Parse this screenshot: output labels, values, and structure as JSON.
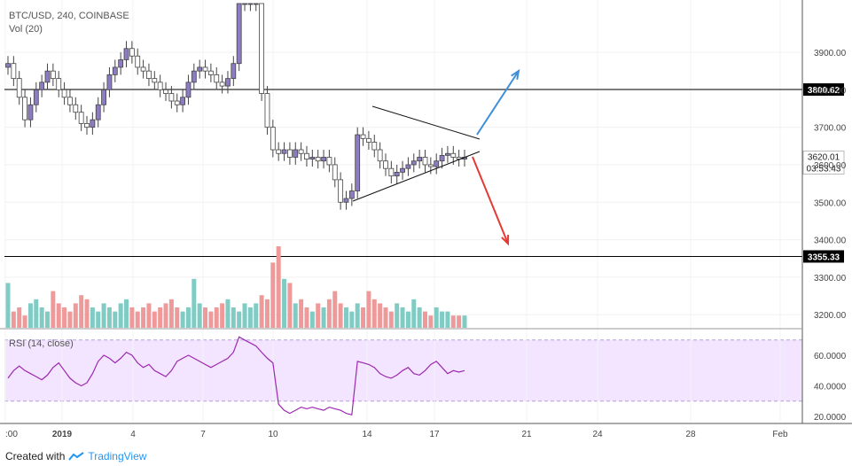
{
  "header": {
    "symbol_line": "BTC/USD, 240, COINBASE",
    "volume_label": "Vol (20)"
  },
  "rsi_panel": {
    "label": "RSI (14, close)"
  },
  "footer": {
    "created_with": "Created with",
    "brand": "TradingView"
  },
  "colors": {
    "up_candle": "#8e7cc3",
    "down_candle": "#ffffff",
    "wick": "#444444",
    "vol_up": "#80cbc4",
    "vol_down": "#ef9a9a",
    "rsi_line": "#9c27b0",
    "rsi_band": "#f3e5ff",
    "projection_up": "#3f8fd8",
    "projection_down": "#e53935"
  },
  "chart_data": {
    "type": "candlestick",
    "price_axis": {
      "ylim": [
        3165,
        4030
      ],
      "ticks": [
        3200,
        3300,
        3400,
        3500,
        3600,
        3700,
        3800,
        3900
      ]
    },
    "price_axis_labels": [
      "3200.00",
      "3300.00",
      "3400.00",
      "3500.00",
      "3600.00",
      "3700.00",
      "3800.00",
      "3900.00"
    ],
    "time_axis_labels": [
      ":00",
      "2019",
      "4",
      "7",
      "10",
      "14",
      "17",
      "21",
      "24",
      "28",
      "Feb"
    ],
    "level_lines": [
      {
        "value": 3800.62,
        "label": "3800.62"
      },
      {
        "value": 3355.33,
        "label": "3355.33"
      }
    ],
    "last_price": {
      "value": 3620.01,
      "label": "3620.01",
      "countdown": "03:53:43"
    },
    "candles_close": [
      3870,
      3830,
      3780,
      3720,
      3760,
      3800,
      3820,
      3850,
      3830,
      3800,
      3780,
      3760,
      3740,
      3710,
      3700,
      3720,
      3760,
      3800,
      3840,
      3860,
      3880,
      3910,
      3890,
      3860,
      3850,
      3830,
      3820,
      3800,
      3790,
      3770,
      3760,
      3780,
      3820,
      3850,
      3860,
      3850,
      3840,
      3820,
      3810,
      3830,
      3870,
      4030,
      4030,
      4030,
      4030,
      3790,
      3700,
      3640,
      3630,
      3640,
      3620,
      3640,
      3630,
      3615,
      3620,
      3610,
      3620,
      3600,
      3560,
      3500,
      3510,
      3530,
      3680,
      3670,
      3660,
      3640,
      3610,
      3590,
      3570,
      3580,
      3590,
      3600,
      3610,
      3620,
      3600,
      3595,
      3610,
      3625,
      3630,
      3620,
      3615,
      3620
    ],
    "volume": [
      55,
      20,
      25,
      15,
      30,
      35,
      25,
      20,
      45,
      30,
      25,
      20,
      30,
      40,
      35,
      25,
      20,
      30,
      25,
      20,
      30,
      35,
      25,
      20,
      25,
      30,
      20,
      25,
      30,
      35,
      25,
      20,
      25,
      60,
      30,
      25,
      20,
      25,
      30,
      35,
      25,
      20,
      30,
      25,
      30,
      40,
      35,
      80,
      100,
      60,
      55,
      30,
      35,
      25,
      20,
      30,
      25,
      35,
      45,
      30,
      25,
      20,
      30,
      25,
      45,
      35,
      30,
      25,
      20,
      30,
      25,
      20,
      35,
      25,
      20,
      15,
      25,
      20,
      20,
      15,
      15,
      15
    ],
    "rsi_ticks": [
      20,
      40,
      60
    ],
    "rsi_tick_labels": [
      "20.0000",
      "40.0000",
      "60.0000"
    ],
    "rsi_band": [
      30,
      70
    ],
    "rsi": [
      45,
      50,
      53,
      50,
      48,
      46,
      44,
      47,
      52,
      55,
      50,
      45,
      42,
      40,
      42,
      48,
      56,
      60,
      58,
      55,
      58,
      62,
      60,
      55,
      52,
      54,
      50,
      48,
      46,
      50,
      56,
      58,
      60,
      58,
      56,
      54,
      52,
      54,
      56,
      58,
      62,
      72,
      70,
      68,
      66,
      62,
      58,
      55,
      28,
      24,
      22,
      24,
      26,
      25,
      26,
      25,
      24,
      26,
      25,
      24,
      22,
      21,
      56,
      55,
      54,
      52,
      48,
      46,
      45,
      47,
      50,
      52,
      48,
      47,
      50,
      54,
      56,
      52,
      48,
      50,
      49,
      50
    ]
  }
}
